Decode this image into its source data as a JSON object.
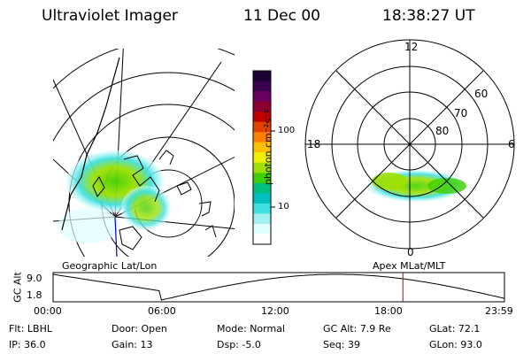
{
  "header": {
    "instrument": "Ultraviolet Imager",
    "date": "11 Dec 00",
    "time": "18:38:27 UT"
  },
  "colorbar": {
    "label": "photon cm⁻²s⁻¹",
    "ticks": [
      "100",
      "10"
    ],
    "colors": [
      "#1a0033",
      "#3a0050",
      "#6a0060",
      "#8c0030",
      "#c00000",
      "#e04000",
      "#ff8000",
      "#ffc000",
      "#f0f000",
      "#a0e000",
      "#40d000",
      "#00c080",
      "#00c0c0",
      "#40e0e0",
      "#a0f0f0",
      "#e0ffff",
      "#ffffff"
    ]
  },
  "left_panel": {
    "label": "Geographic Lat/Lon"
  },
  "right_panel": {
    "label": "Apex MLat/MLT",
    "mlt_labels": {
      "top": "12",
      "bottom": "0",
      "left": "18",
      "right": "6"
    },
    "lat_labels": [
      "60",
      "70",
      "80"
    ]
  },
  "altitude_plot": {
    "ylabel": "GC Alt",
    "y_ticks": [
      "9.0",
      "1.8"
    ],
    "x_ticks": [
      "00:00",
      "06:00",
      "12:00",
      "18:00",
      "23:59"
    ],
    "current_time_fraction": 0.775,
    "line_color": "#000000",
    "marker_color": "#d00000"
  },
  "info": {
    "row1": [
      {
        "label": "Flt:",
        "value": "LBHL"
      },
      {
        "label": "Door:",
        "value": "Open"
      },
      {
        "label": "Mode:",
        "value": "Normal"
      },
      {
        "label": "GC Alt:",
        "value": "7.9 Re"
      },
      {
        "label": "GLat:",
        "value": "72.1"
      }
    ],
    "row2": [
      {
        "label": "IP:",
        "value": "36.0"
      },
      {
        "label": "Gain:",
        "value": "13"
      },
      {
        "label": "Dsp:",
        "value": "-5.0"
      },
      {
        "label": "Seq:",
        "value": "39"
      },
      {
        "label": "GLon:",
        "value": "93.0"
      }
    ]
  }
}
